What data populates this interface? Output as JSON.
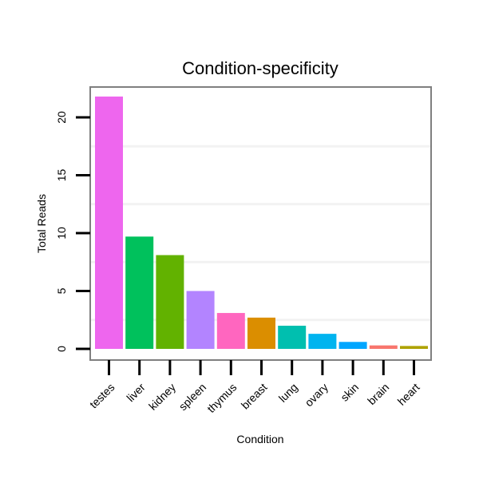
{
  "chart_data": {
    "type": "bar",
    "title": "Condition-specificity",
    "xlabel": "Condition",
    "ylabel": "Total Reads",
    "ylim": [
      -1,
      22.7
    ],
    "yticks": [
      0,
      5,
      10,
      15,
      20
    ],
    "grid": true,
    "legend": "none",
    "categories": [
      "testes",
      "liver",
      "kidney",
      "spleen",
      "thymus",
      "breast",
      "lung",
      "ovary",
      "skin",
      "brain",
      "heart"
    ],
    "values": [
      21.8,
      9.7,
      8.1,
      5.0,
      3.1,
      2.7,
      2.0,
      1.3,
      0.6,
      0.3,
      0.25
    ],
    "colors": [
      "#ee66ee",
      "#00c15c",
      "#62b200",
      "#b384ff",
      "#ff66bf",
      "#db8e00",
      "#00bfaf",
      "#00b4ef",
      "#00a6ff",
      "#f8766d",
      "#aea200"
    ]
  }
}
